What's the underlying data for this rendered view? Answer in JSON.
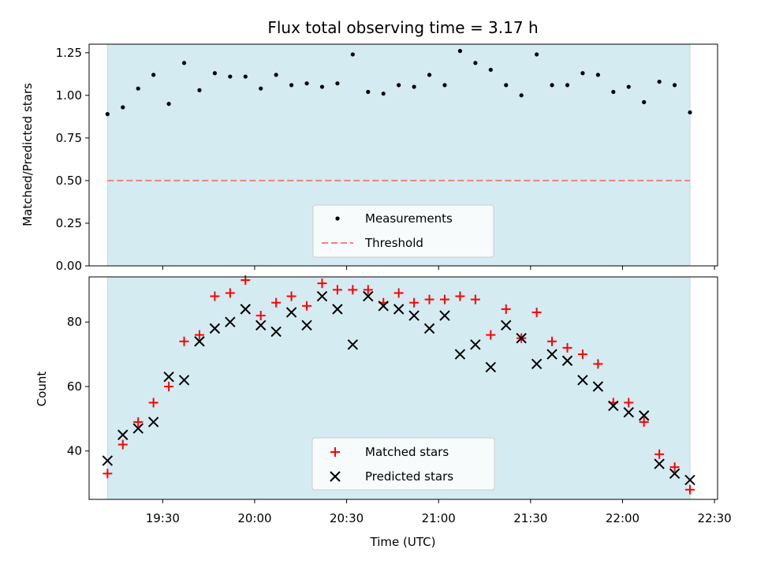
{
  "chart_data": [
    {
      "type": "scatter",
      "title": "Flux total observing time = 3.17 h",
      "xlabel": "",
      "ylabel": "Matched/Predicted stars",
      "ylim": [
        0,
        1.3
      ],
      "yticks": [
        "0.00",
        "0.25",
        "0.50",
        "0.75",
        "1.00",
        "1.25"
      ],
      "xlim": [
        "19:06",
        "22:31"
      ],
      "observing_window": [
        "19:12",
        "22:22"
      ],
      "shade_color": "#d4ebf1",
      "x": [
        "19:12",
        "19:17",
        "19:22",
        "19:27",
        "19:32",
        "19:37",
        "19:42",
        "19:47",
        "19:52",
        "19:57",
        "20:02",
        "20:07",
        "20:12",
        "20:17",
        "20:22",
        "20:27",
        "20:32",
        "20:37",
        "20:42",
        "20:47",
        "20:52",
        "20:57",
        "21:02",
        "21:07",
        "21:12",
        "21:17",
        "21:22",
        "21:27",
        "21:32",
        "21:37",
        "21:42",
        "21:47",
        "21:52",
        "21:57",
        "22:02",
        "22:07",
        "22:12",
        "22:17",
        "22:22"
      ],
      "series": [
        {
          "name": "Measurements",
          "color": "#000000",
          "marker": "dot",
          "values": [
            0.89,
            0.93,
            1.04,
            1.12,
            0.95,
            1.19,
            1.03,
            1.13,
            1.11,
            1.11,
            1.04,
            1.12,
            1.06,
            1.07,
            1.05,
            1.07,
            1.24,
            1.02,
            1.01,
            1.06,
            1.05,
            1.12,
            1.06,
            1.26,
            1.19,
            1.15,
            1.06,
            1.0,
            1.24,
            1.06,
            1.06,
            1.13,
            1.12,
            1.02,
            1.05,
            0.96,
            1.08,
            1.06,
            0.9
          ]
        },
        {
          "name": "Threshold",
          "color": "#f08080",
          "marker": "dashed-line",
          "value": 0.5
        }
      ],
      "legend": "lower center"
    },
    {
      "type": "scatter",
      "title": "",
      "xlabel": "Time (UTC)",
      "ylabel": "Count",
      "ylim": [
        25,
        94
      ],
      "yticks": [
        "40",
        "60",
        "80"
      ],
      "xlim": [
        "19:06",
        "22:31"
      ],
      "xticks": [
        "19:30",
        "20:00",
        "20:30",
        "21:00",
        "21:30",
        "22:00",
        "22:30"
      ],
      "observing_window": [
        "19:12",
        "22:22"
      ],
      "shade_color": "#d4ebf1",
      "x": [
        "19:12",
        "19:17",
        "19:22",
        "19:27",
        "19:32",
        "19:37",
        "19:42",
        "19:47",
        "19:52",
        "19:57",
        "20:02",
        "20:07",
        "20:12",
        "20:17",
        "20:22",
        "20:27",
        "20:32",
        "20:37",
        "20:42",
        "20:47",
        "20:52",
        "20:57",
        "21:02",
        "21:07",
        "21:12",
        "21:17",
        "21:22",
        "21:27",
        "21:32",
        "21:37",
        "21:42",
        "21:47",
        "21:52",
        "21:57",
        "22:02",
        "22:07",
        "22:12",
        "22:17",
        "22:22"
      ],
      "series": [
        {
          "name": "Matched stars",
          "color": "#ff0000",
          "marker": "plus",
          "values": [
            33,
            42,
            49,
            55,
            60,
            74,
            76,
            88,
            89,
            93,
            82,
            86,
            88,
            85,
            92,
            90,
            90,
            90,
            86,
            89,
            86,
            87,
            87,
            88,
            87,
            76,
            84,
            75,
            83,
            74,
            72,
            70,
            67,
            55,
            55,
            49,
            39,
            35,
            28
          ]
        },
        {
          "name": "Predicted stars",
          "color": "#000000",
          "marker": "x",
          "values": [
            37,
            45,
            47,
            49,
            63,
            62,
            74,
            78,
            80,
            84,
            79,
            77,
            83,
            79,
            88,
            84,
            73,
            88,
            85,
            84,
            82,
            78,
            82,
            70,
            73,
            66,
            79,
            75,
            67,
            70,
            68,
            62,
            60,
            54,
            52,
            51,
            36,
            33,
            31
          ]
        }
      ],
      "legend": "lower center"
    }
  ]
}
